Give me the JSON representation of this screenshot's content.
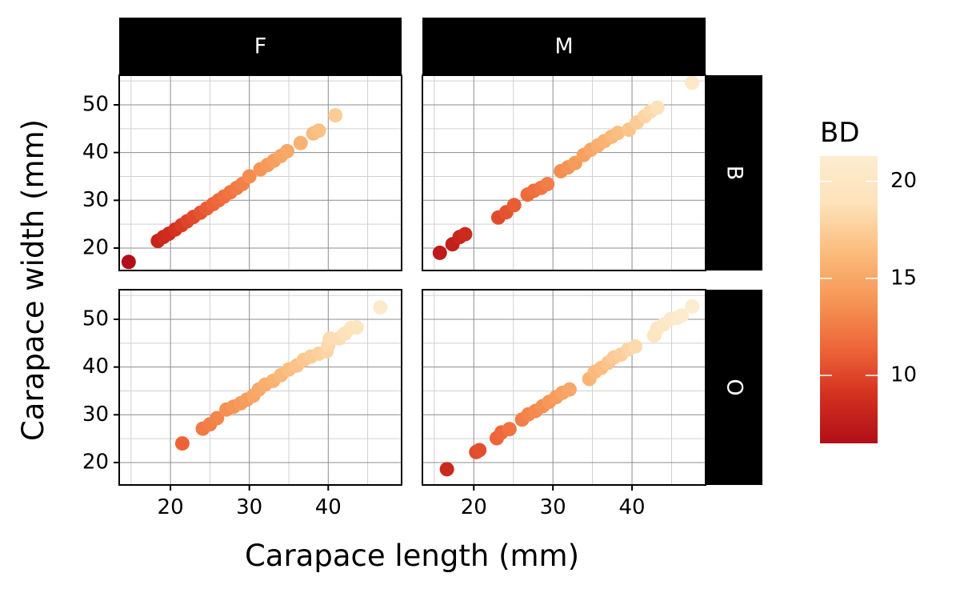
{
  "chart_data": {
    "type": "scatter",
    "facet_cols": [
      "F",
      "M"
    ],
    "facet_rows": [
      "B",
      "O"
    ],
    "xlabel": "Carapace length (mm)",
    "ylabel": "Carapace width (mm)",
    "xlim": [
      13.5,
      49.3
    ],
    "ylim": [
      15.3,
      56.2
    ],
    "x_ticks": [
      20,
      30,
      40
    ],
    "y_ticks": [
      20,
      30,
      40,
      50
    ],
    "grid": true,
    "legend": {
      "title": "BD",
      "position": "right",
      "ticks": [
        10,
        15,
        20
      ],
      "range": [
        6.5,
        21.3
      ],
      "colors": [
        "#b10f19",
        "#d3301f",
        "#ee6639",
        "#f69656",
        "#fbbc7e",
        "#fde2ba",
        "#fdecd0"
      ]
    },
    "panels": [
      {
        "col": "F",
        "row": "B",
        "points": [
          [
            14.7,
            17.1,
            6.5
          ],
          [
            18.4,
            21.5,
            8.1
          ],
          [
            19.1,
            22.3,
            8.5
          ],
          [
            19.8,
            23.0,
            8.7
          ],
          [
            20.6,
            23.9,
            9.1
          ],
          [
            21.4,
            24.8,
            9.5
          ],
          [
            22.1,
            25.6,
            9.9
          ],
          [
            22.9,
            26.5,
            10.2
          ],
          [
            23.8,
            27.4,
            10.6
          ],
          [
            24.6,
            28.3,
            11.0
          ],
          [
            25.4,
            29.2,
            11.3
          ],
          [
            26.1,
            30.0,
            11.6
          ],
          [
            26.8,
            30.8,
            11.9
          ],
          [
            27.6,
            31.7,
            12.2
          ],
          [
            28.4,
            32.6,
            12.5
          ],
          [
            29.1,
            33.4,
            12.8
          ],
          [
            30.0,
            35.0,
            13.4
          ],
          [
            31.4,
            36.5,
            13.8
          ],
          [
            32.3,
            37.4,
            14.1
          ],
          [
            33.1,
            38.3,
            14.5
          ],
          [
            34.0,
            39.3,
            14.8
          ],
          [
            34.8,
            40.3,
            15.1
          ],
          [
            36.5,
            42.0,
            15.7
          ],
          [
            38.1,
            44.0,
            16.3
          ],
          [
            38.8,
            44.6,
            16.6
          ],
          [
            40.9,
            47.8,
            17.4
          ]
        ]
      },
      {
        "col": "M",
        "row": "B",
        "points": [
          [
            15.7,
            19.0,
            7.3
          ],
          [
            17.3,
            20.8,
            7.8
          ],
          [
            18.2,
            22.3,
            8.2
          ],
          [
            18.9,
            22.9,
            8.5
          ],
          [
            23.1,
            26.4,
            10.2
          ],
          [
            24.1,
            27.5,
            10.6
          ],
          [
            25.1,
            29.0,
            11.0
          ],
          [
            26.8,
            31.2,
            11.6
          ],
          [
            27.6,
            32.0,
            11.9
          ],
          [
            28.5,
            32.6,
            12.2
          ],
          [
            29.3,
            33.4,
            12.6
          ],
          [
            31.0,
            36.1,
            13.5
          ],
          [
            31.9,
            36.9,
            13.8
          ],
          [
            32.8,
            37.8,
            14.2
          ],
          [
            33.9,
            39.5,
            14.6
          ],
          [
            34.8,
            40.6,
            15.0
          ],
          [
            35.7,
            41.5,
            15.4
          ],
          [
            36.5,
            42.4,
            15.8
          ],
          [
            37.4,
            43.3,
            16.1
          ],
          [
            38.2,
            44.1,
            16.5
          ],
          [
            39.6,
            44.8,
            16.9
          ],
          [
            40.6,
            46.3,
            17.4
          ],
          [
            41.6,
            47.6,
            17.9
          ],
          [
            42.3,
            48.6,
            18.3
          ],
          [
            43.2,
            49.4,
            18.8
          ],
          [
            47.6,
            54.6,
            20.4
          ]
        ]
      },
      {
        "col": "F",
        "row": "O",
        "points": [
          [
            21.5,
            24.0,
            11.3
          ],
          [
            24.1,
            27.1,
            12.4
          ],
          [
            25.0,
            28.0,
            12.7
          ],
          [
            25.9,
            29.3,
            13.1
          ],
          [
            27.1,
            31.1,
            13.6
          ],
          [
            28.0,
            31.7,
            13.9
          ],
          [
            28.9,
            32.4,
            14.2
          ],
          [
            29.7,
            33.2,
            14.5
          ],
          [
            30.5,
            34.0,
            14.8
          ],
          [
            31.2,
            35.3,
            15.1
          ],
          [
            32.0,
            36.3,
            15.4
          ],
          [
            33.0,
            37.1,
            15.8
          ],
          [
            34.0,
            38.3,
            16.1
          ],
          [
            35.0,
            39.5,
            16.5
          ],
          [
            36.0,
            40.3,
            16.8
          ],
          [
            36.9,
            41.5,
            17.1
          ],
          [
            37.8,
            42.2,
            17.4
          ],
          [
            38.8,
            42.8,
            17.7
          ],
          [
            39.8,
            43.3,
            18.0
          ],
          [
            40.0,
            44.5,
            18.2
          ],
          [
            40.2,
            46.0,
            18.5
          ],
          [
            41.4,
            46.0,
            18.6
          ],
          [
            42.1,
            47.0,
            18.9
          ],
          [
            42.9,
            48.2,
            19.3
          ],
          [
            43.6,
            48.3,
            19.5
          ],
          [
            46.6,
            52.5,
            20.9
          ]
        ]
      },
      {
        "col": "M",
        "row": "O",
        "points": [
          [
            16.6,
            18.6,
            8.4
          ],
          [
            20.3,
            22.2,
            10.2
          ],
          [
            20.7,
            22.6,
            10.4
          ],
          [
            22.9,
            25.1,
            11.4
          ],
          [
            23.5,
            26.3,
            11.6
          ],
          [
            24.5,
            27.0,
            12.1
          ],
          [
            26.1,
            29.0,
            12.7
          ],
          [
            26.9,
            30.1,
            13.0
          ],
          [
            27.8,
            30.8,
            13.3
          ],
          [
            28.7,
            31.8,
            13.6
          ],
          [
            29.5,
            32.7,
            14.0
          ],
          [
            30.4,
            33.7,
            14.3
          ],
          [
            31.2,
            34.6,
            14.7
          ],
          [
            32.1,
            35.3,
            15.0
          ],
          [
            34.6,
            37.5,
            15.9
          ],
          [
            35.3,
            39.0,
            16.2
          ],
          [
            36.1,
            39.8,
            16.5
          ],
          [
            37.0,
            40.9,
            16.9
          ],
          [
            37.7,
            42.0,
            17.3
          ],
          [
            38.6,
            42.6,
            17.6
          ],
          [
            39.5,
            43.7,
            18.0
          ],
          [
            40.4,
            44.3,
            18.3
          ],
          [
            42.8,
            46.6,
            19.5
          ],
          [
            43.2,
            48.1,
            19.8
          ],
          [
            44.0,
            48.9,
            20.2
          ],
          [
            44.9,
            50.1,
            20.6
          ],
          [
            45.7,
            50.3,
            20.8
          ],
          [
            46.3,
            50.8,
            21.0
          ],
          [
            47.6,
            52.7,
            21.3
          ]
        ]
      }
    ]
  }
}
